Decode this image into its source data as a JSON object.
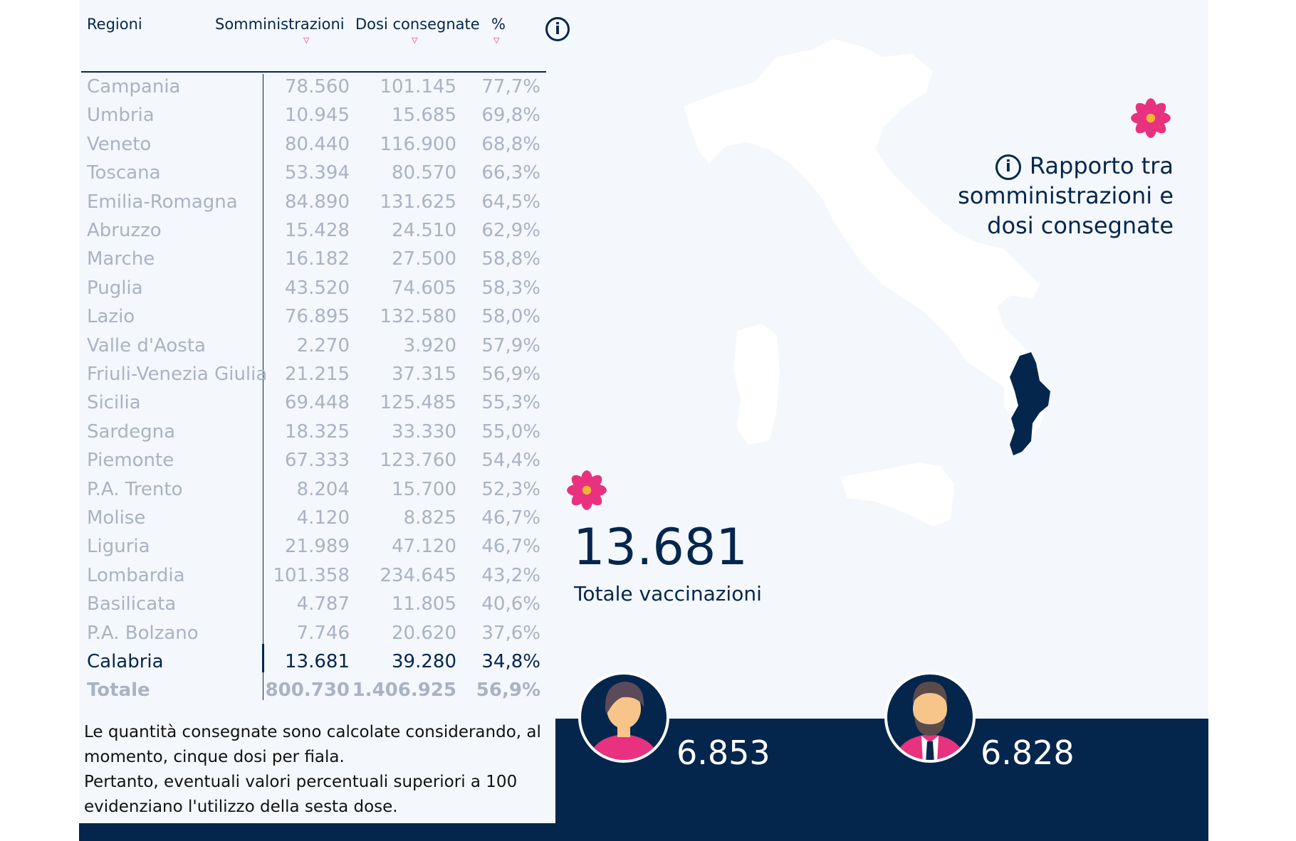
{
  "table": {
    "headers": {
      "region": "Regioni",
      "administered": "Somministrazioni",
      "delivered": "Dosi consegnate",
      "percent": "%"
    },
    "rows": [
      {
        "region": "Campania",
        "administered": "78.560",
        "delivered": "101.145",
        "percent": "77,7%"
      },
      {
        "region": "Umbria",
        "administered": "10.945",
        "delivered": "15.685",
        "percent": "69,8%"
      },
      {
        "region": "Veneto",
        "administered": "80.440",
        "delivered": "116.900",
        "percent": "68,8%"
      },
      {
        "region": "Toscana",
        "administered": "53.394",
        "delivered": "80.570",
        "percent": "66,3%"
      },
      {
        "region": "Emilia-Romagna",
        "administered": "84.890",
        "delivered": "131.625",
        "percent": "64,5%"
      },
      {
        "region": "Abruzzo",
        "administered": "15.428",
        "delivered": "24.510",
        "percent": "62,9%"
      },
      {
        "region": "Marche",
        "administered": "16.182",
        "delivered": "27.500",
        "percent": "58,8%"
      },
      {
        "region": "Puglia",
        "administered": "43.520",
        "delivered": "74.605",
        "percent": "58,3%"
      },
      {
        "region": "Lazio",
        "administered": "76.895",
        "delivered": "132.580",
        "percent": "58,0%"
      },
      {
        "region": "Valle d'Aosta",
        "administered": "2.270",
        "delivered": "3.920",
        "percent": "57,9%"
      },
      {
        "region": "Friuli-Venezia Giulia",
        "administered": "21.215",
        "delivered": "37.315",
        "percent": "56,9%"
      },
      {
        "region": "Sicilia",
        "administered": "69.448",
        "delivered": "125.485",
        "percent": "55,3%"
      },
      {
        "region": "Sardegna",
        "administered": "18.325",
        "delivered": "33.330",
        "percent": "55,0%"
      },
      {
        "region": "Piemonte",
        "administered": "67.333",
        "delivered": "123.760",
        "percent": "54,4%"
      },
      {
        "region": "P.A. Trento",
        "administered": "8.204",
        "delivered": "15.700",
        "percent": "52,3%"
      },
      {
        "region": "Molise",
        "administered": "4.120",
        "delivered": "8.825",
        "percent": "46,7%"
      },
      {
        "region": "Liguria",
        "administered": "21.989",
        "delivered": "47.120",
        "percent": "46,7%"
      },
      {
        "region": "Lombardia",
        "administered": "101.358",
        "delivered": "234.645",
        "percent": "43,2%"
      },
      {
        "region": "Basilicata",
        "administered": "4.787",
        "delivered": "11.805",
        "percent": "40,6%"
      },
      {
        "region": "P.A. Bolzano",
        "administered": "7.746",
        "delivered": "20.620",
        "percent": "37,6%"
      },
      {
        "region": "Calabria",
        "administered": "13.681",
        "delivered": "39.280",
        "percent": "34,8%"
      },
      {
        "region": "Totale",
        "administered": "800.730",
        "delivered": "1.406.925",
        "percent": "56,9%"
      }
    ],
    "highlighted_region": "Calabria"
  },
  "note": {
    "lines": [
      "Le quantità consegnate sono calcolate considerando, al",
      "momento, cinque dosi per fiala.",
      "Pertanto, eventuali valori percentuali superiori a 100",
      "evidenziano l'utilizzo della sesta dose."
    ]
  },
  "title": {
    "lines": [
      "Rapporto tra",
      "somministrazioni e",
      "dosi consegnate"
    ]
  },
  "total": {
    "value": "13.681",
    "label": "Totale vaccinazioni"
  },
  "gender": {
    "female_count": "6.853",
    "male_count": "6.828"
  },
  "colors": {
    "navy": "#04264d",
    "pink": "#e8327f",
    "muted_text": "#a9b3c2",
    "panel": "#f4f7fc"
  },
  "icons": {
    "info": "info-icon",
    "sort": "sort-down-icon",
    "flower": "flower-icon"
  }
}
